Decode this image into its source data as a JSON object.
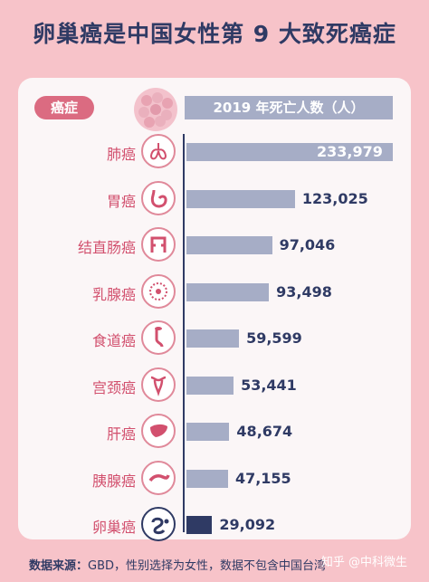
{
  "title": "卵巢癌是中国女性第 9 大致死癌症",
  "header": {
    "category_label": "癌症",
    "value_label": "2019 年死亡人数（人）"
  },
  "footer": {
    "source_label": "数据来源：",
    "source_text": "GBD，性别选择为女性，数据不包含中国台湾"
  },
  "watermark": "知乎 @中科微生",
  "colors": {
    "bar": "#a6adc6",
    "highlight": "#2f3a64",
    "label": "#d2506e",
    "background": "#f7c3c9"
  },
  "chart_data": {
    "type": "bar",
    "orientation": "horizontal",
    "xlim": [
      0,
      233979
    ],
    "categories": [
      "肺癌",
      "胃癌",
      "结直肠癌",
      "乳腺癌",
      "食道癌",
      "宫颈癌",
      "肝癌",
      "胰腺癌",
      "卵巢癌"
    ],
    "value_labels": [
      "233,979",
      "123,025",
      "97,046",
      "93,498",
      "59,599",
      "53,441",
      "48,674",
      "47,155",
      "29,092"
    ],
    "values": [
      233979,
      123025,
      97046,
      93498,
      59599,
      53441,
      48674,
      47155,
      29092
    ],
    "icons": [
      "lungs-icon",
      "stomach-icon",
      "colon-icon",
      "breast-icon",
      "esophagus-icon",
      "uterus-icon",
      "liver-icon",
      "pancreas-icon",
      "ovary-icon"
    ],
    "highlight": "卵巢癌"
  }
}
